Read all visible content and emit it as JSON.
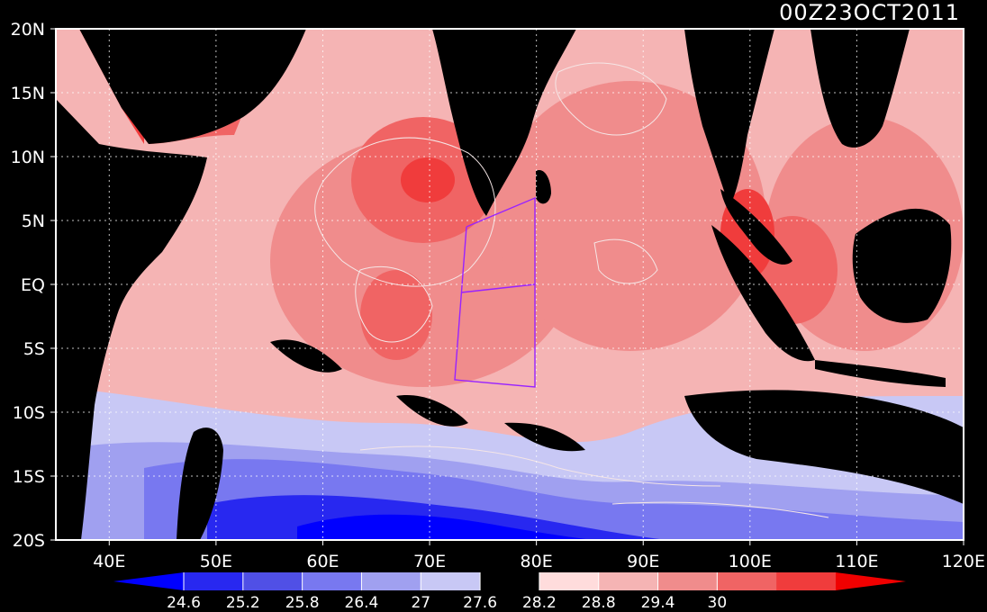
{
  "timestamp": "00Z23OCT2011",
  "axes": {
    "lon": {
      "min": 35,
      "max": 120,
      "ticks": [
        {
          "value": 40,
          "label": "40E"
        },
        {
          "value": 50,
          "label": "50E"
        },
        {
          "value": 60,
          "label": "60E"
        },
        {
          "value": 70,
          "label": "70E"
        },
        {
          "value": 80,
          "label": "80E"
        },
        {
          "value": 90,
          "label": "90E"
        },
        {
          "value": 100,
          "label": "100E"
        },
        {
          "value": 110,
          "label": "110E"
        },
        {
          "value": 120,
          "label": "120E"
        }
      ]
    },
    "lat": {
      "min": -20,
      "max": 20,
      "ticks": [
        {
          "value": 20,
          "label": "20N"
        },
        {
          "value": 15,
          "label": "15N"
        },
        {
          "value": 10,
          "label": "10N"
        },
        {
          "value": 5,
          "label": "5N"
        },
        {
          "value": 0,
          "label": "EQ"
        },
        {
          "value": -5,
          "label": "5S"
        },
        {
          "value": -10,
          "label": "10S"
        },
        {
          "value": -15,
          "label": "15S"
        },
        {
          "value": -20,
          "label": "20S"
        }
      ]
    },
    "grid": true
  },
  "colorbar": {
    "labels": [
      "24.6",
      "25.2",
      "25.8",
      "26.4",
      "27",
      "27.6",
      "28.2",
      "28.8",
      "29.4",
      "30"
    ],
    "colors": [
      "#0000ff",
      "#2828f0",
      "#5050e6",
      "#7878f0",
      "#a0a0f0",
      "#c8c8f5",
      "#000000",
      "#ffdcdc",
      "#f5b4b4",
      "#f08c8c",
      "#f06464",
      "#f03c3c",
      "#f00000"
    ]
  },
  "overlays": {
    "box_color": "#9922ff"
  },
  "land_color": "#000000"
}
